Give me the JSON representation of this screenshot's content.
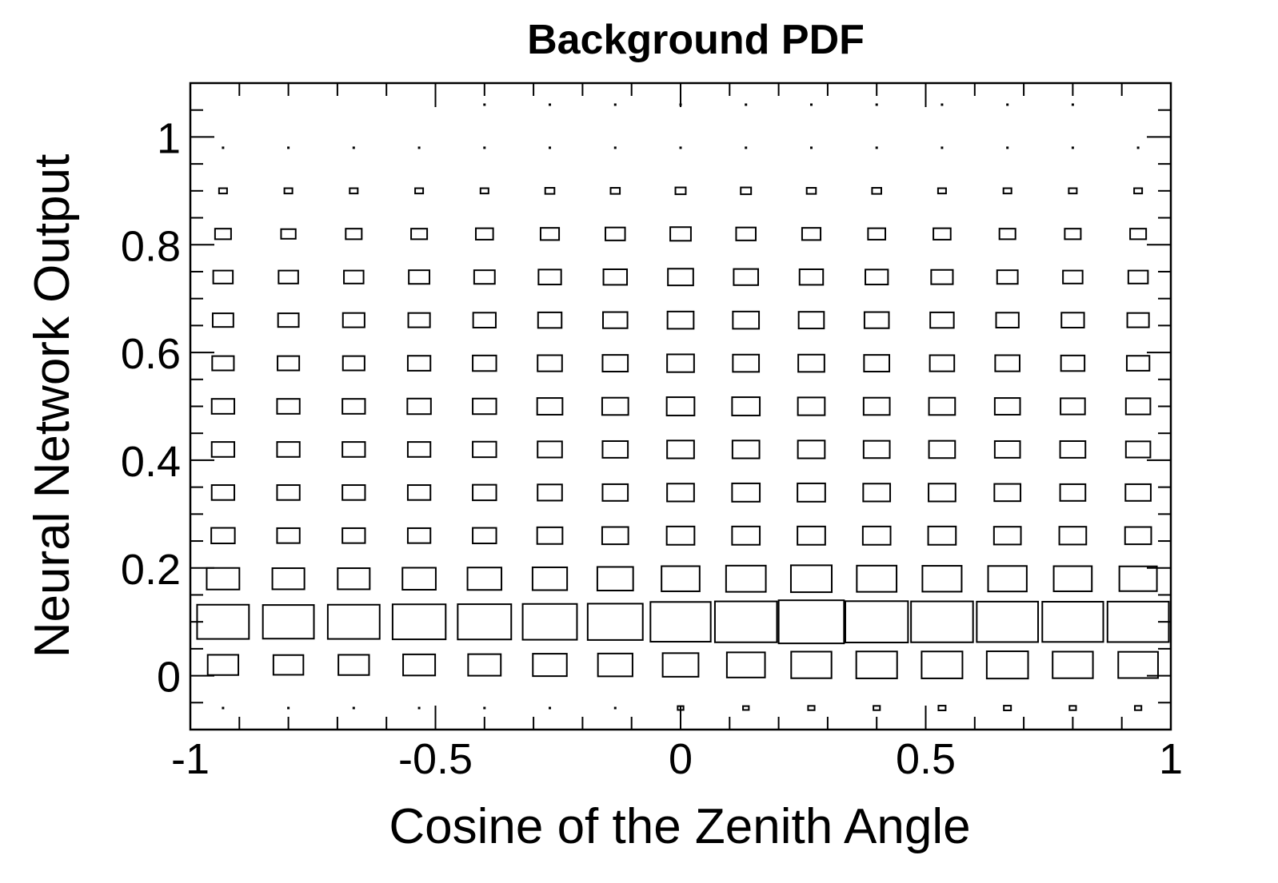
{
  "chart_data": {
    "type": "heatmap",
    "style": "box",
    "title": "Background PDF",
    "xlabel": "Cosine of the Zenith Angle",
    "ylabel": "Neural Network Output",
    "xlim": [
      -1,
      1
    ],
    "ylim": [
      -0.1,
      1.1
    ],
    "xticks": [
      -1,
      -0.5,
      0,
      0.5,
      1
    ],
    "xtick_labels": [
      "-1",
      "-0.5",
      "0",
      "0.5",
      "1"
    ],
    "yticks": [
      0,
      0.2,
      0.4,
      0.6,
      0.8,
      1
    ],
    "ytick_labels": [
      "0",
      "0.2",
      "0.4",
      "0.6",
      "0.8",
      "1"
    ],
    "grid": false,
    "x_bin_centers": [
      -0.9333,
      -0.8,
      -0.6667,
      -0.5333,
      -0.4,
      -0.2667,
      -0.1333,
      0,
      0.1333,
      0.2667,
      0.4,
      0.5333,
      0.6667,
      0.8,
      0.9333
    ],
    "y_bin_centers": [
      -0.06,
      0.02,
      0.1,
      0.18,
      0.26,
      0.34,
      0.42,
      0.5,
      0.58,
      0.66,
      0.74,
      0.82,
      0.9,
      0.98,
      1.06
    ],
    "box_scale_max": 1.0,
    "values": [
      [
        0.004,
        0.004,
        0.004,
        0.004,
        0.004,
        0.004,
        0.006,
        0.008,
        0.008,
        0.01,
        0.01,
        0.012,
        0.012,
        0.01,
        0.01
      ],
      [
        0.22,
        0.21,
        0.22,
        0.24,
        0.25,
        0.27,
        0.28,
        0.3,
        0.34,
        0.38,
        0.39,
        0.39,
        0.4,
        0.38,
        0.37
      ],
      [
        0.63,
        0.61,
        0.63,
        0.66,
        0.67,
        0.69,
        0.71,
        0.85,
        0.9,
        1.0,
        0.92,
        0.9,
        0.88,
        0.87,
        0.88
      ],
      [
        0.25,
        0.24,
        0.24,
        0.26,
        0.27,
        0.28,
        0.3,
        0.34,
        0.37,
        0.39,
        0.37,
        0.36,
        0.35,
        0.34,
        0.33
      ],
      [
        0.13,
        0.12,
        0.12,
        0.12,
        0.13,
        0.15,
        0.16,
        0.18,
        0.18,
        0.18,
        0.18,
        0.18,
        0.17,
        0.17,
        0.16
      ],
      [
        0.12,
        0.12,
        0.12,
        0.12,
        0.13,
        0.14,
        0.15,
        0.17,
        0.18,
        0.18,
        0.17,
        0.17,
        0.16,
        0.15,
        0.15
      ],
      [
        0.12,
        0.12,
        0.12,
        0.12,
        0.13,
        0.14,
        0.15,
        0.17,
        0.17,
        0.17,
        0.16,
        0.16,
        0.15,
        0.15,
        0.14
      ],
      [
        0.12,
        0.12,
        0.12,
        0.13,
        0.13,
        0.15,
        0.16,
        0.18,
        0.18,
        0.17,
        0.16,
        0.16,
        0.15,
        0.14,
        0.14
      ],
      [
        0.11,
        0.11,
        0.11,
        0.12,
        0.13,
        0.14,
        0.15,
        0.17,
        0.16,
        0.16,
        0.15,
        0.14,
        0.14,
        0.13,
        0.12
      ],
      [
        0.1,
        0.1,
        0.11,
        0.11,
        0.12,
        0.13,
        0.14,
        0.16,
        0.16,
        0.15,
        0.14,
        0.13,
        0.12,
        0.12,
        0.11
      ],
      [
        0.09,
        0.09,
        0.09,
        0.1,
        0.1,
        0.12,
        0.13,
        0.15,
        0.14,
        0.13,
        0.12,
        0.11,
        0.1,
        0.09,
        0.09
      ],
      [
        0.06,
        0.05,
        0.06,
        0.06,
        0.07,
        0.08,
        0.09,
        0.1,
        0.09,
        0.08,
        0.07,
        0.07,
        0.06,
        0.06,
        0.06
      ],
      [
        0.015,
        0.015,
        0.015,
        0.015,
        0.015,
        0.02,
        0.02,
        0.025,
        0.025,
        0.02,
        0.02,
        0.015,
        0.015,
        0.015,
        0.015
      ],
      [
        0.003,
        0.003,
        0.003,
        0.003,
        0.003,
        0.003,
        0.004,
        0.005,
        0.004,
        0.004,
        0.004,
        0.003,
        0.003,
        0.003,
        0.003
      ],
      [
        0.0,
        0.0,
        0.0,
        0.0,
        0.001,
        0.001,
        0.001,
        0.002,
        0.001,
        0.001,
        0.001,
        0.001,
        0.001,
        0.001,
        0.0
      ]
    ]
  }
}
